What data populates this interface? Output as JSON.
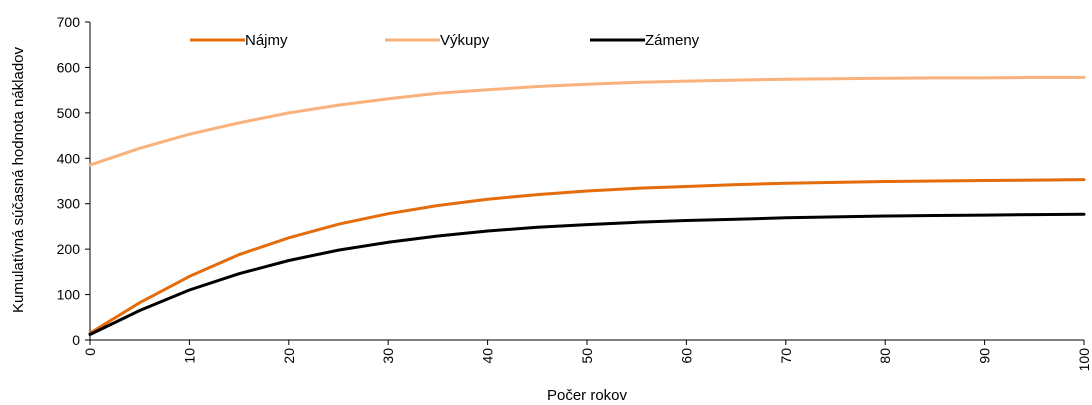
{
  "chart_data": {
    "type": "line",
    "xlabel": "Počer rokov",
    "ylabel": "Kumulatívná súčasná hodnota nákladov",
    "xlim": [
      0,
      100
    ],
    "ylim": [
      0,
      700
    ],
    "x_ticks": [
      "0",
      "10",
      "20",
      "30",
      "40",
      "50",
      "60",
      "70",
      "80",
      "90",
      "100"
    ],
    "y_ticks": [
      "0",
      "100",
      "200",
      "300",
      "400",
      "500",
      "600",
      "700"
    ],
    "grid": false,
    "legend_position": "top",
    "x": [
      0,
      5,
      10,
      15,
      20,
      25,
      30,
      35,
      40,
      45,
      50,
      55,
      60,
      65,
      70,
      75,
      80,
      85,
      90,
      95,
      100
    ],
    "series": [
      {
        "name": "Nájmy",
        "color": "#E46C0A",
        "values": [
          15,
          82,
          140,
          188,
          225,
          255,
          278,
          296,
          310,
          320,
          328,
          334,
          338,
          342,
          345,
          347,
          349,
          350,
          351,
          352,
          353
        ]
      },
      {
        "name": "Výkupy",
        "color": "#F9B27C",
        "values": [
          385,
          422,
          453,
          478,
          500,
          517,
          531,
          543,
          551,
          558,
          563,
          567,
          570,
          572,
          574,
          575,
          576,
          577,
          577,
          578,
          578
        ]
      },
      {
        "name": "Zámeny",
        "color": "#000000",
        "values": [
          12,
          65,
          110,
          146,
          175,
          198,
          215,
          229,
          240,
          248,
          254,
          259,
          263,
          266,
          269,
          271,
          273,
          274,
          275,
          276,
          277
        ]
      }
    ]
  }
}
